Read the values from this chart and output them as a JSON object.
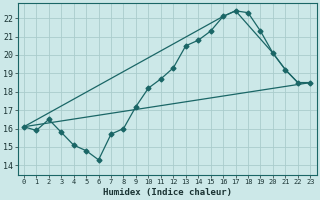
{
  "xlabel": "Humidex (Indice chaleur)",
  "xlim": [
    -0.5,
    23.5
  ],
  "ylim": [
    13.5,
    22.8
  ],
  "yticks": [
    14,
    15,
    16,
    17,
    18,
    19,
    20,
    21,
    22
  ],
  "xticks": [
    0,
    1,
    2,
    3,
    4,
    5,
    6,
    7,
    8,
    9,
    10,
    11,
    12,
    13,
    14,
    15,
    16,
    17,
    18,
    19,
    20,
    21,
    22,
    23
  ],
  "bg_color": "#cce8e8",
  "grid_color": "#aacccc",
  "line_color": "#1a6666",
  "line1_x": [
    0,
    1,
    2,
    3,
    4,
    5,
    6,
    7,
    8,
    9,
    10,
    11,
    12,
    13,
    14,
    15,
    16,
    17,
    18,
    19,
    20,
    21,
    22,
    23
  ],
  "line1_y": [
    16.1,
    15.9,
    16.5,
    15.8,
    15.1,
    14.8,
    14.3,
    15.7,
    16.0,
    17.2,
    18.2,
    18.7,
    19.3,
    20.5,
    20.8,
    21.3,
    22.1,
    22.4,
    22.3,
    21.3,
    20.1,
    19.2,
    18.5,
    18.5
  ],
  "line2_x": [
    0,
    16,
    17,
    20,
    21,
    22,
    23
  ],
  "line2_y": [
    16.1,
    22.1,
    22.4,
    20.1,
    19.2,
    18.5,
    18.5
  ],
  "line3_x": [
    0,
    23
  ],
  "line3_y": [
    16.1,
    18.5
  ],
  "marker": "D",
  "marker_size": 2.5,
  "linewidth": 0.9
}
